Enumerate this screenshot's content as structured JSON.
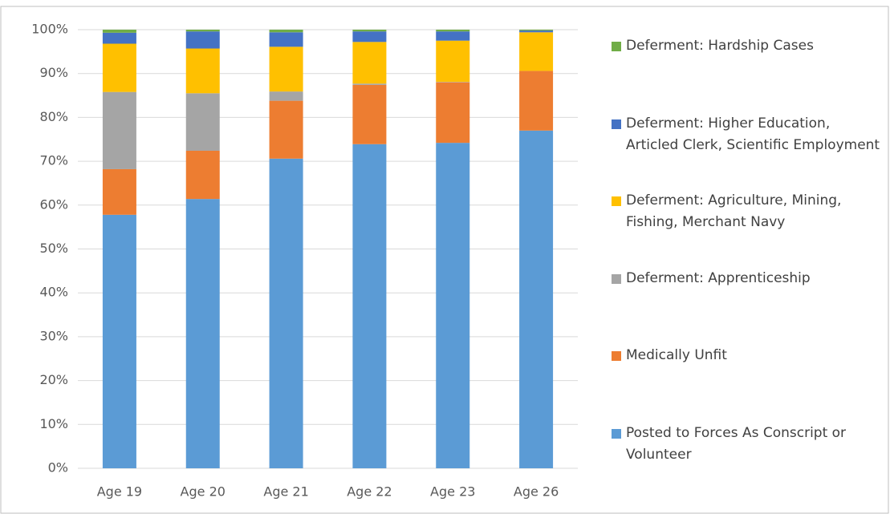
{
  "chart_data": {
    "type": "bar",
    "stacked": true,
    "categories": [
      "Age 19",
      "Age 20",
      "Age 21",
      "Age 22",
      "Age 23",
      "Age 26"
    ],
    "series": [
      {
        "name": "Posted to Forces As Conscript or Volunteer",
        "color": "#5b9bd5",
        "values": [
          57.8,
          61.4,
          70.6,
          73.9,
          74.2,
          77.0
        ]
      },
      {
        "name": "Medically Unfit",
        "color": "#ed7d31",
        "values": [
          10.4,
          11.0,
          13.2,
          13.5,
          13.8,
          13.6
        ]
      },
      {
        "name": "Deferment: Apprenticeship",
        "color": "#a5a5a5",
        "values": [
          17.6,
          13.1,
          2.1,
          0.3,
          0.1,
          0
        ]
      },
      {
        "name": "Deferment: Agriculture, Mining, Fishing, Merchant Navy",
        "color": "#ffc000",
        "values": [
          11.0,
          10.2,
          10.2,
          9.5,
          9.4,
          8.8
        ]
      },
      {
        "name": "Deferment: Higher Education, Articled Clerk, Scientific Employment",
        "color": "#4472c4",
        "values": [
          2.5,
          3.9,
          3.3,
          2.4,
          2.1,
          0.4
        ]
      },
      {
        "name": "Deferment: Hardship Cases",
        "color": "#70ad47",
        "values": [
          0.7,
          0.4,
          0.6,
          0.4,
          0.4,
          0.2
        ]
      }
    ],
    "ylim": [
      0,
      100
    ],
    "yticks": [
      {
        "value": 0,
        "label": "0%"
      },
      {
        "value": 10,
        "label": "10%"
      },
      {
        "value": 20,
        "label": "20%"
      },
      {
        "value": 30,
        "label": "30%"
      },
      {
        "value": 40,
        "label": "40%"
      },
      {
        "value": 50,
        "label": "50%"
      },
      {
        "value": 60,
        "label": "60%"
      },
      {
        "value": 70,
        "label": "70%"
      },
      {
        "value": 80,
        "label": "80%"
      },
      {
        "value": 90,
        "label": "90%"
      },
      {
        "value": 100,
        "label": "100%"
      }
    ],
    "grid": true,
    "legend": "right"
  }
}
